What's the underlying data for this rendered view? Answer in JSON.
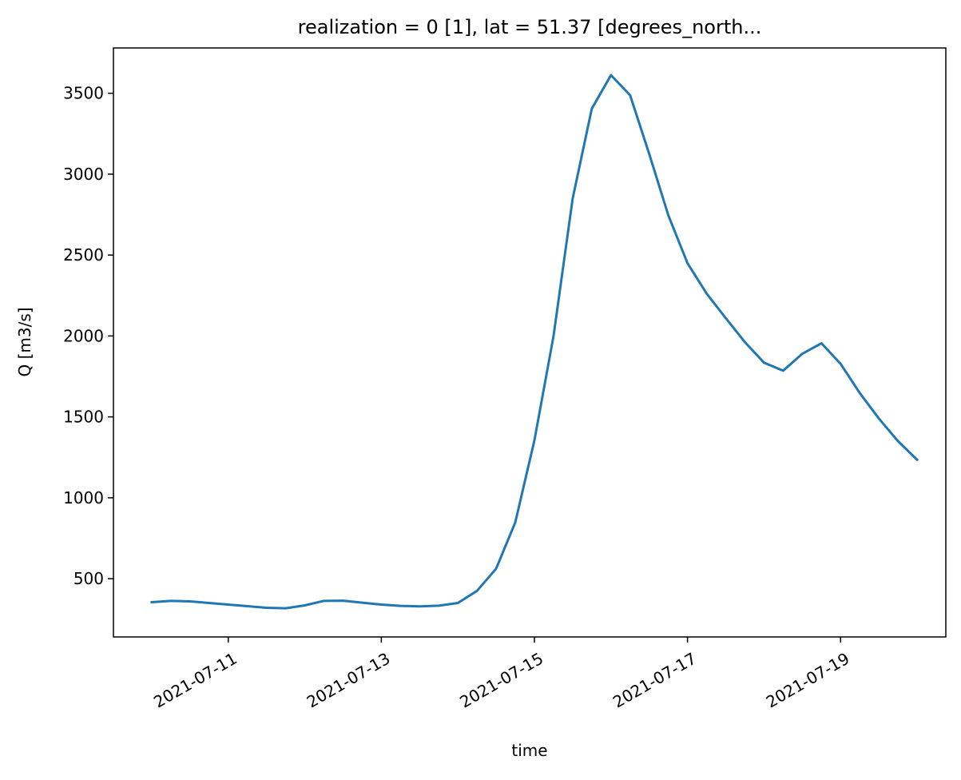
{
  "chart_data": {
    "type": "line",
    "title": "realization = 0 [1], lat = 51.37 [degrees_north...",
    "xlabel": "time",
    "ylabel": "Q [m3/s]",
    "x_type": "datetime",
    "xlim": [
      "2021-07-09T12:00",
      "2021-07-20T09:00"
    ],
    "ylim": [
      140,
      3780
    ],
    "grid": false,
    "legend": "none",
    "colors": {
      "line": "#1f77b4",
      "axes": "#000000",
      "background": "#ffffff"
    },
    "x_ticks": [
      {
        "value": "2021-07-11",
        "label": "2021-07-11"
      },
      {
        "value": "2021-07-13",
        "label": "2021-07-13"
      },
      {
        "value": "2021-07-15",
        "label": "2021-07-15"
      },
      {
        "value": "2021-07-17",
        "label": "2021-07-17"
      },
      {
        "value": "2021-07-19",
        "label": "2021-07-19"
      }
    ],
    "y_ticks": [
      500,
      1000,
      1500,
      2000,
      2500,
      3000,
      3500
    ],
    "series": [
      {
        "x": [
          "2021-07-10T00:00",
          "2021-07-10T06:00",
          "2021-07-10T12:00",
          "2021-07-10T18:00",
          "2021-07-11T00:00",
          "2021-07-11T06:00",
          "2021-07-11T12:00",
          "2021-07-11T18:00",
          "2021-07-12T00:00",
          "2021-07-12T06:00",
          "2021-07-12T12:00",
          "2021-07-12T18:00",
          "2021-07-13T00:00",
          "2021-07-13T06:00",
          "2021-07-13T12:00",
          "2021-07-13T18:00",
          "2021-07-14T00:00",
          "2021-07-14T06:00",
          "2021-07-14T12:00",
          "2021-07-14T18:00",
          "2021-07-15T00:00",
          "2021-07-15T06:00",
          "2021-07-15T12:00",
          "2021-07-15T18:00",
          "2021-07-16T00:00",
          "2021-07-16T06:00",
          "2021-07-16T12:00",
          "2021-07-16T18:00",
          "2021-07-17T00:00",
          "2021-07-17T06:00",
          "2021-07-17T12:00",
          "2021-07-17T18:00",
          "2021-07-18T00:00",
          "2021-07-18T06:00",
          "2021-07-18T12:00",
          "2021-07-18T18:00",
          "2021-07-19T00:00",
          "2021-07-19T06:00",
          "2021-07-19T12:00",
          "2021-07-19T18:00",
          "2021-07-20T00:00"
        ],
        "values": [
          355,
          363,
          360,
          350,
          340,
          330,
          320,
          317,
          335,
          363,
          364,
          352,
          340,
          332,
          329,
          333,
          350,
          425,
          562,
          848,
          1355,
          2000,
          2850,
          3405,
          3612,
          3488,
          3125,
          2745,
          2450,
          2262,
          2110,
          1962,
          1835,
          1785,
          1890,
          1955,
          1828,
          1648,
          1490,
          1350,
          1235
        ]
      }
    ]
  }
}
